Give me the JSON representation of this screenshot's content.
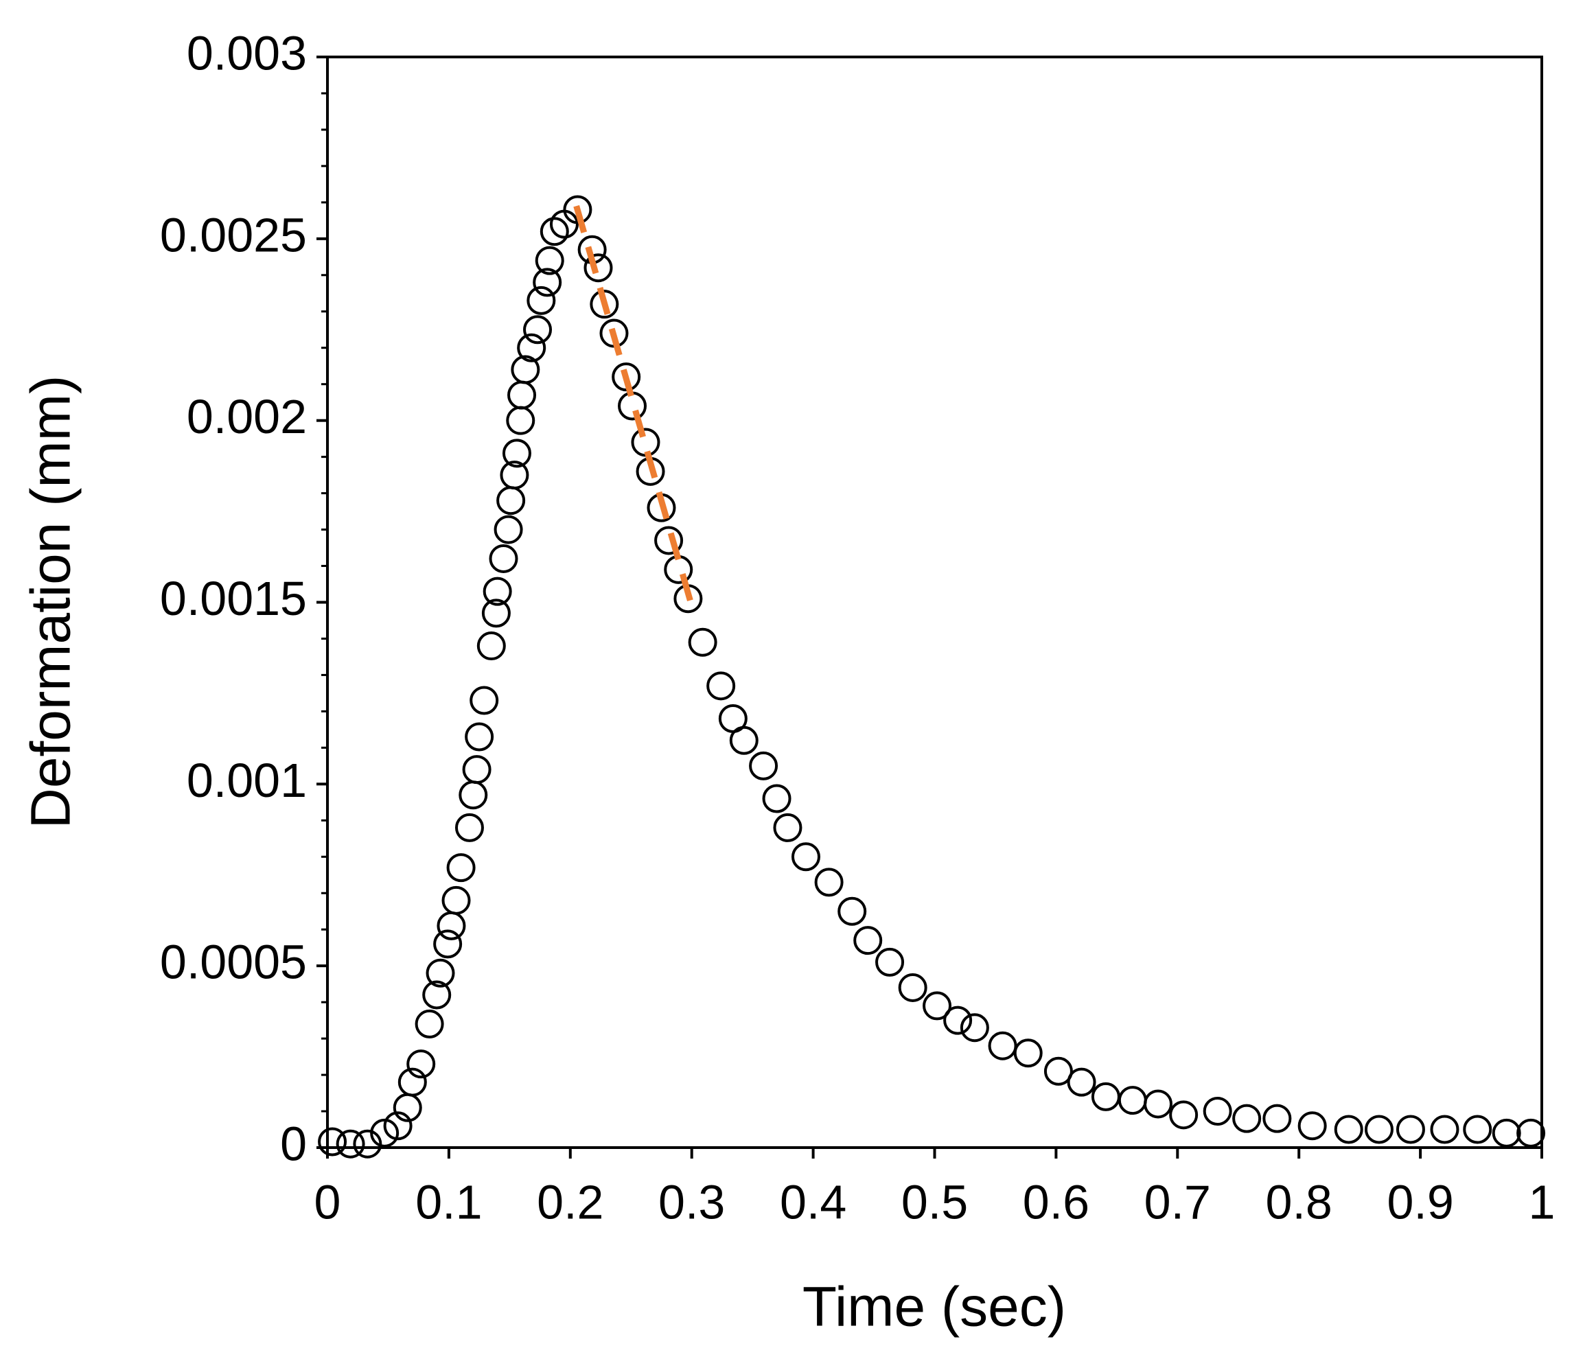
{
  "chart_data": {
    "type": "scatter",
    "x_label": "Time (sec)",
    "y_label": "Deformation (mm)",
    "xlim": [
      0,
      1
    ],
    "ylim": [
      0,
      0.003
    ],
    "xticks": [
      0,
      0.1,
      0.2,
      0.3,
      0.4,
      0.5,
      0.6,
      0.7,
      0.8,
      0.9,
      1
    ],
    "yticks": [
      0,
      0.0005,
      0.001,
      0.0015,
      0.002,
      0.0025,
      0.003
    ],
    "y_minor_ticks": [
      0.0001,
      0.0002,
      0.0003,
      0.0004,
      0.0006,
      0.0007,
      0.0008,
      0.0009,
      0.0011,
      0.0012,
      0.0013,
      0.0014,
      0.0016,
      0.0017,
      0.0018,
      0.0019,
      0.0021,
      0.0022,
      0.0023,
      0.0024,
      0.0026,
      0.0027,
      0.0028,
      0.0029
    ],
    "marker_color": "#000000",
    "x": [
      0.004,
      0.019,
      0.033,
      0.047,
      0.058,
      0.066,
      0.07,
      0.077,
      0.084,
      0.09,
      0.093,
      0.099,
      0.102,
      0.106,
      0.11,
      0.117,
      0.12,
      0.123,
      0.125,
      0.129,
      0.135,
      0.139,
      0.14,
      0.145,
      0.149,
      0.151,
      0.154,
      0.156,
      0.159,
      0.16,
      0.163,
      0.168,
      0.173,
      0.176,
      0.181,
      0.183,
      0.187,
      0.195,
      0.206,
      0.218,
      0.223,
      0.228,
      0.236,
      0.246,
      0.251,
      0.262,
      0.266,
      0.275,
      0.281,
      0.289,
      0.297,
      0.309,
      0.324,
      0.334,
      0.343,
      0.359,
      0.37,
      0.379,
      0.394,
      0.413,
      0.432,
      0.445,
      0.463,
      0.482,
      0.502,
      0.519,
      0.533,
      0.556,
      0.577,
      0.602,
      0.621,
      0.641,
      0.663,
      0.684,
      0.705,
      0.733,
      0.757,
      0.782,
      0.811,
      0.841,
      0.866,
      0.892,
      0.92,
      0.947,
      0.971,
      0.991
    ],
    "y": [
      1.6e-05,
      1e-05,
      1e-05,
      4e-05,
      6e-05,
      0.00011,
      0.00018,
      0.00023,
      0.00034,
      0.00042,
      0.00048,
      0.00056,
      0.00061,
      0.00068,
      0.00077,
      0.00088,
      0.00097,
      0.00104,
      0.00113,
      0.00123,
      0.00138,
      0.00147,
      0.00153,
      0.00162,
      0.0017,
      0.00178,
      0.00185,
      0.00191,
      0.002,
      0.00207,
      0.00214,
      0.0022,
      0.00225,
      0.00233,
      0.00238,
      0.00244,
      0.00252,
      0.00254,
      0.00258,
      0.00247,
      0.00242,
      0.00232,
      0.00224,
      0.00212,
      0.00204,
      0.00194,
      0.00186,
      0.00176,
      0.00167,
      0.00159,
      0.00151,
      0.00139,
      0.00127,
      0.00118,
      0.00112,
      0.00105,
      0.00096,
      0.00088,
      0.0008,
      0.00073,
      0.00065,
      0.00057,
      0.00051,
      0.00044,
      0.00039,
      0.00035,
      0.00033,
      0.00028,
      0.00026,
      0.00021,
      0.00018,
      0.00014,
      0.00013,
      0.00012,
      9e-05,
      0.0001,
      8e-05,
      8e-05,
      6e-05,
      5e-05,
      5e-05,
      5e-05,
      5e-05,
      5e-05,
      4e-05,
      4e-05
    ],
    "fit": {
      "color": "#ed7d31",
      "x": [
        0.205,
        0.3
      ],
      "y": [
        0.00259,
        0.00149
      ]
    }
  }
}
